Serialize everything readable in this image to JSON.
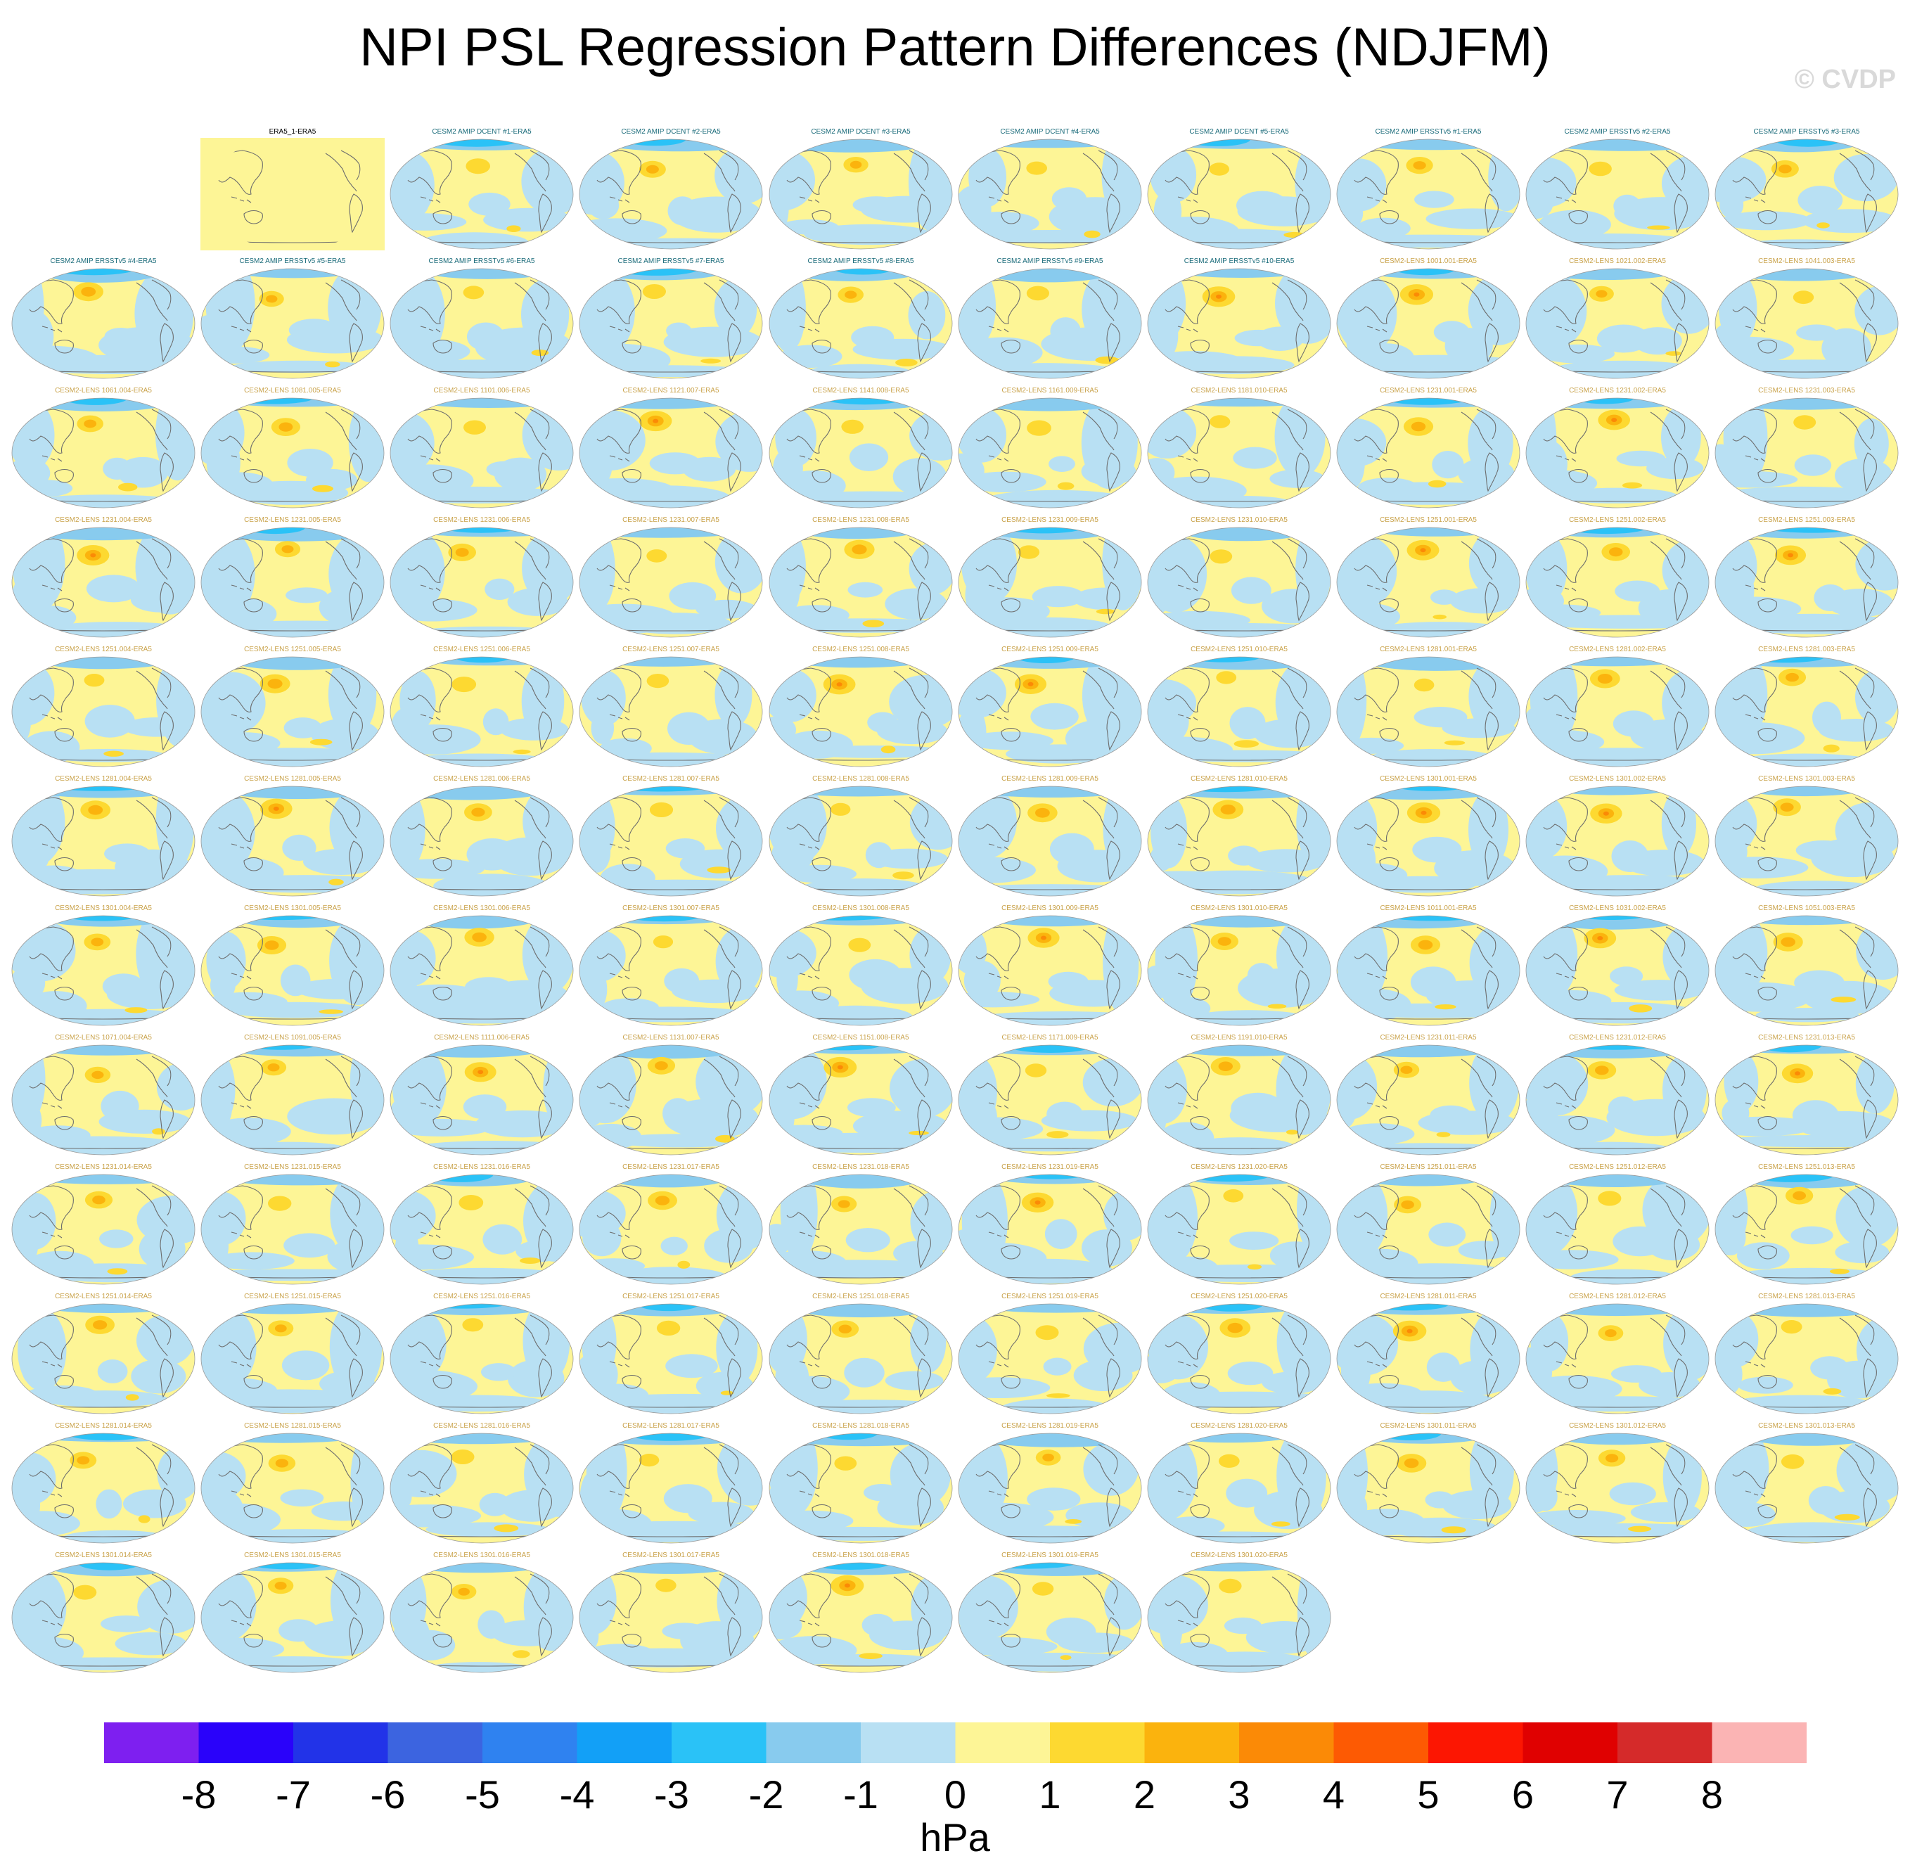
{
  "title": "NPI PSL Regression Pattern Differences (NDJFM)",
  "watermark": "© CVDP",
  "chart_data": {
    "type": "panel-grid",
    "panel_titles": [
      "ERA5_1-ERA5",
      "CESM2 AMIP DCENT #1-ERA5",
      "CESM2 AMIP DCENT #2-ERA5",
      "CESM2 AMIP DCENT #3-ERA5",
      "CESM2 AMIP DCENT #4-ERA5",
      "CESM2 AMIP DCENT #5-ERA5",
      "CESM2 AMIP ERSSTv5 #1-ERA5",
      "CESM2 AMIP ERSSTv5 #2-ERA5",
      "CESM2 AMIP ERSSTv5 #3-ERA5",
      "CESM2 AMIP ERSSTv5 #4-ERA5",
      "CESM2 AMIP ERSSTv5 #5-ERA5",
      "CESM2 AMIP ERSSTv5 #6-ERA5",
      "CESM2 AMIP ERSSTv5 #7-ERA5",
      "CESM2 AMIP ERSSTv5 #8-ERA5",
      "CESM2 AMIP ERSSTv5 #9-ERA5",
      "CESM2 AMIP ERSSTv5 #10-ERA5",
      "CESM2-LENS 1001.001-ERA5",
      "CESM2-LENS 1021.002-ERA5",
      "CESM2-LENS 1041.003-ERA5",
      "CESM2-LENS 1061.004-ERA5",
      "CESM2-LENS 1081.005-ERA5",
      "CESM2-LENS 1101.006-ERA5",
      "CESM2-LENS 1121.007-ERA5",
      "CESM2-LENS 1141.008-ERA5",
      "CESM2-LENS 1161.009-ERA5",
      "CESM2-LENS 1181.010-ERA5",
      "CESM2-LENS 1231.001-ERA5",
      "CESM2-LENS 1231.002-ERA5",
      "CESM2-LENS 1231.003-ERA5",
      "CESM2-LENS 1231.004-ERA5",
      "CESM2-LENS 1231.005-ERA5",
      "CESM2-LENS 1231.006-ERA5",
      "CESM2-LENS 1231.007-ERA5",
      "CESM2-LENS 1231.008-ERA5",
      "CESM2-LENS 1231.009-ERA5",
      "CESM2-LENS 1231.010-ERA5",
      "CESM2-LENS 1251.001-ERA5",
      "CESM2-LENS 1251.002-ERA5",
      "CESM2-LENS 1251.003-ERA5",
      "CESM2-LENS 1251.004-ERA5",
      "CESM2-LENS 1251.005-ERA5",
      "CESM2-LENS 1251.006-ERA5",
      "CESM2-LENS 1251.007-ERA5",
      "CESM2-LENS 1251.008-ERA5",
      "CESM2-LENS 1251.009-ERA5",
      "CESM2-LENS 1251.010-ERA5",
      "CESM2-LENS 1281.001-ERA5",
      "CESM2-LENS 1281.002-ERA5",
      "CESM2-LENS 1281.003-ERA5",
      "CESM2-LENS 1281.004-ERA5",
      "CESM2-LENS 1281.005-ERA5",
      "CESM2-LENS 1281.006-ERA5",
      "CESM2-LENS 1281.007-ERA5",
      "CESM2-LENS 1281.008-ERA5",
      "CESM2-LENS 1281.009-ERA5",
      "CESM2-LENS 1281.010-ERA5",
      "CESM2-LENS 1301.001-ERA5",
      "CESM2-LENS 1301.002-ERA5",
      "CESM2-LENS 1301.003-ERA5",
      "CESM2-LENS 1301.004-ERA5",
      "CESM2-LENS 1301.005-ERA5",
      "CESM2-LENS 1301.006-ERA5",
      "CESM2-LENS 1301.007-ERA5",
      "CESM2-LENS 1301.008-ERA5",
      "CESM2-LENS 1301.009-ERA5",
      "CESM2-LENS 1301.010-ERA5",
      "CESM2-LENS 1011.001-ERA5",
      "CESM2-LENS 1031.002-ERA5",
      "CESM2-LENS 1051.003-ERA5",
      "CESM2-LENS 1071.004-ERA5",
      "CESM2-LENS 1091.005-ERA5",
      "CESM2-LENS 1111.006-ERA5",
      "CESM2-LENS 1131.007-ERA5",
      "CESM2-LENS 1151.008-ERA5",
      "CESM2-LENS 1171.009-ERA5",
      "CESM2-LENS 1191.010-ERA5",
      "CESM2-LENS 1231.011-ERA5",
      "CESM2-LENS 1231.012-ERA5",
      "CESM2-LENS 1231.013-ERA5",
      "CESM2-LENS 1231.014-ERA5",
      "CESM2-LENS 1231.015-ERA5",
      "CESM2-LENS 1231.016-ERA5",
      "CESM2-LENS 1231.017-ERA5",
      "CESM2-LENS 1231.018-ERA5",
      "CESM2-LENS 1231.019-ERA5",
      "CESM2-LENS 1231.020-ERA5",
      "CESM2-LENS 1251.011-ERA5",
      "CESM2-LENS 1251.012-ERA5",
      "CESM2-LENS 1251.013-ERA5",
      "CESM2-LENS 1251.014-ERA5",
      "CESM2-LENS 1251.015-ERA5",
      "CESM2-LENS 1251.016-ERA5",
      "CESM2-LENS 1251.017-ERA5",
      "CESM2-LENS 1251.018-ERA5",
      "CESM2-LENS 1251.019-ERA5",
      "CESM2-LENS 1251.020-ERA5",
      "CESM2-LENS 1281.011-ERA5",
      "CESM2-LENS 1281.012-ERA5",
      "CESM2-LENS 1281.013-ERA5",
      "CESM2-LENS 1281.014-ERA5",
      "CESM2-LENS 1281.015-ERA5",
      "CESM2-LENS 1281.016-ERA5",
      "CESM2-LENS 1281.017-ERA5",
      "CESM2-LENS 1281.018-ERA5",
      "CESM2-LENS 1281.019-ERA5",
      "CESM2-LENS 1281.020-ERA5",
      "CESM2-LENS 1301.011-ERA5",
      "CESM2-LENS 1301.012-ERA5",
      "CESM2-LENS 1301.013-ERA5",
      "CESM2-LENS 1301.014-ERA5",
      "CESM2-LENS 1301.015-ERA5",
      "CESM2-LENS 1301.016-ERA5",
      "CESM2-LENS 1301.017-ERA5",
      "CESM2-LENS 1301.018-ERA5",
      "CESM2-LENS 1301.019-ERA5",
      "CESM2-LENS 1301.020-ERA5"
    ],
    "title_colors": {
      "reference": "#000000",
      "amip": "#1a6b7a",
      "lens": "#c9a24a"
    },
    "colorbar": {
      "labels": [
        "-8",
        "-7",
        "-6",
        "-5",
        "-4",
        "-3",
        "-2",
        "-1",
        "0",
        "1",
        "2",
        "3",
        "4",
        "5",
        "6",
        "7",
        "8"
      ],
      "colors": [
        "#7e1ff0",
        "#2a02fa",
        "#2233e8",
        "#3c64e0",
        "#2f82f0",
        "#12a0f7",
        "#2ac2f7",
        "#88cbee",
        "#b8e0f3",
        "#fdf596",
        "#fdd931",
        "#fbb30d",
        "#fb8a06",
        "#fd5a03",
        "#fc1602",
        "#e00101",
        "#d52a2a",
        "#fbb4b4"
      ],
      "units": "hPa"
    }
  }
}
